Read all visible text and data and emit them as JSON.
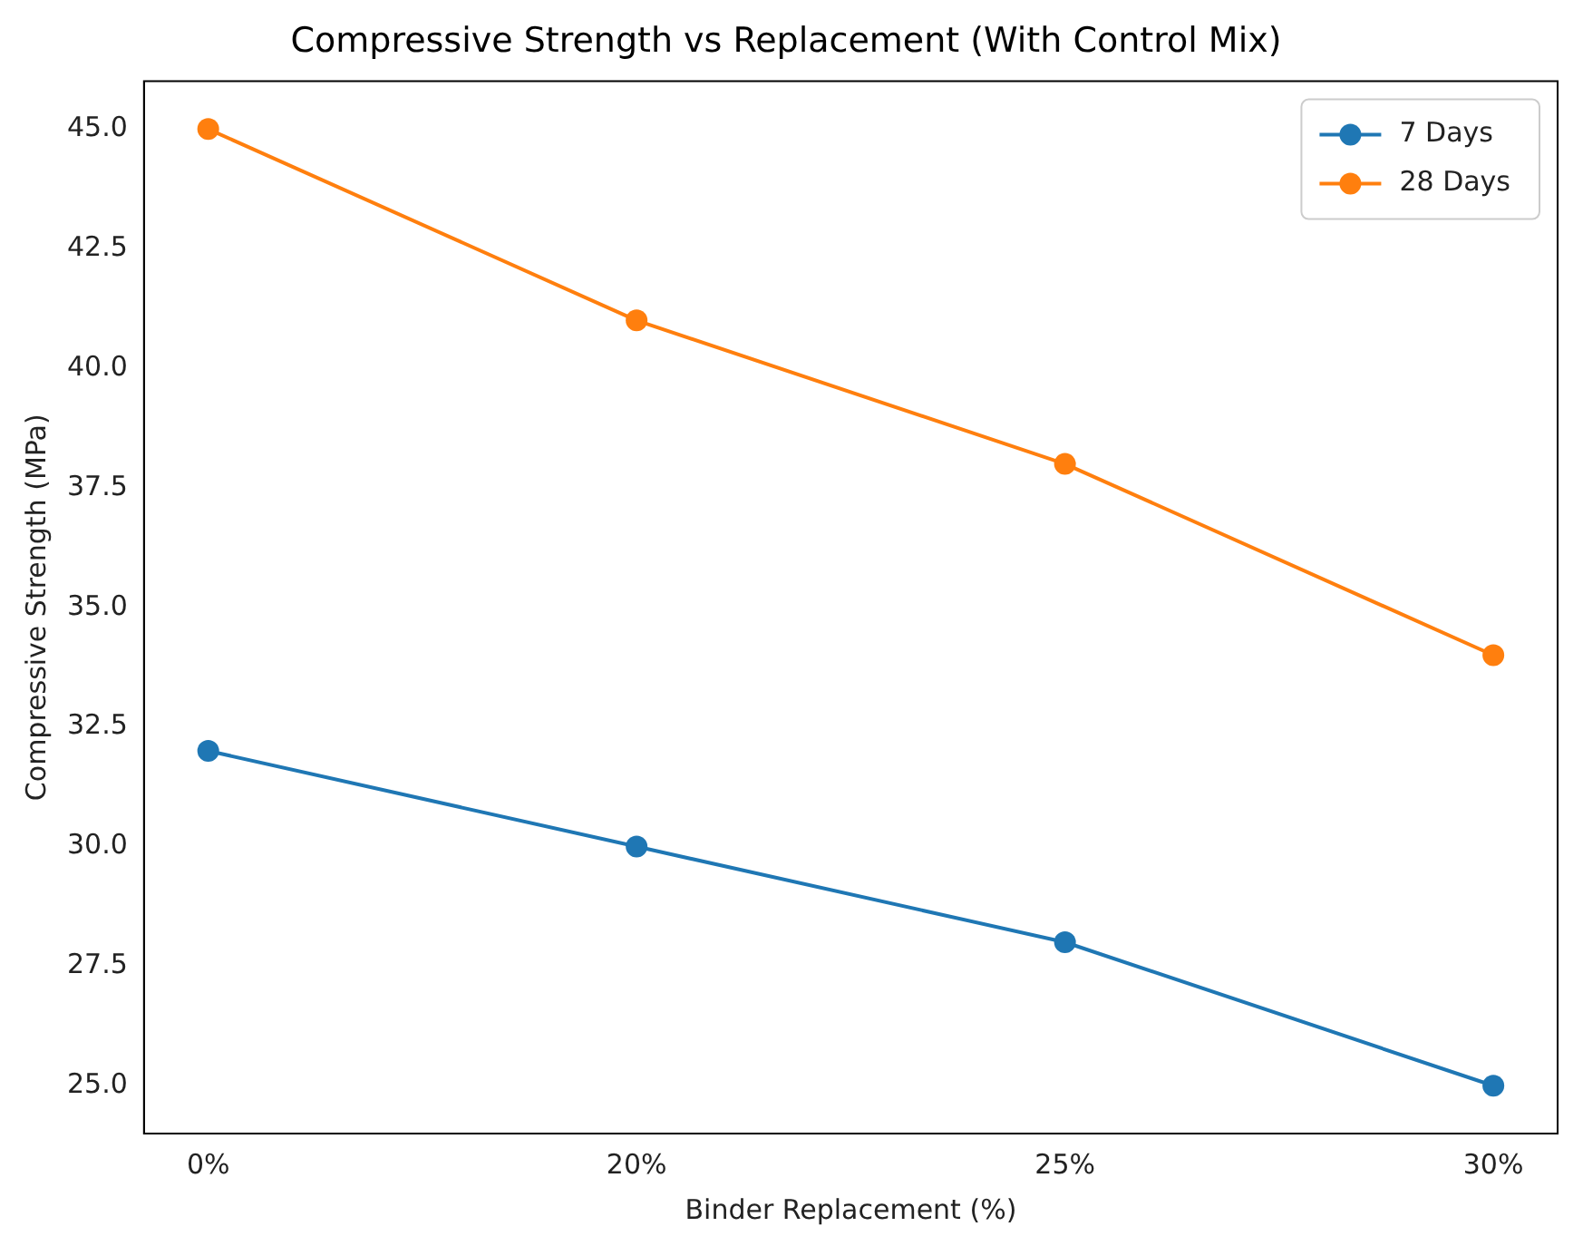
{
  "chart_data": {
    "type": "line",
    "title": "Compressive Strength vs Replacement (With Control Mix)",
    "xlabel": "Binder Replacement (%)",
    "ylabel": "Compressive Strength (MPa)",
    "categories": [
      "0%",
      "20%",
      "25%",
      "30%"
    ],
    "series": [
      {
        "name": "7 Days",
        "color": "#1f77b4",
        "values": [
          32,
          30,
          28,
          25
        ]
      },
      {
        "name": "28 Days",
        "color": "#ff7f0e",
        "values": [
          45,
          41,
          38,
          34
        ]
      }
    ],
    "ylim": [
      24,
      46
    ],
    "yticks": [
      {
        "value": 25,
        "label": "25.0"
      },
      {
        "value": 27.5,
        "label": "27.5"
      },
      {
        "value": 30,
        "label": "30.0"
      },
      {
        "value": 32.5,
        "label": "32.5"
      },
      {
        "value": 35,
        "label": "35.0"
      },
      {
        "value": 37.5,
        "label": "37.5"
      },
      {
        "value": 40,
        "label": "40.0"
      },
      {
        "value": 42.5,
        "label": "42.5"
      },
      {
        "value": 45,
        "label": "45.0"
      }
    ],
    "grid": false,
    "legend": "top right",
    "marker": "circle",
    "line_style": "solid"
  }
}
